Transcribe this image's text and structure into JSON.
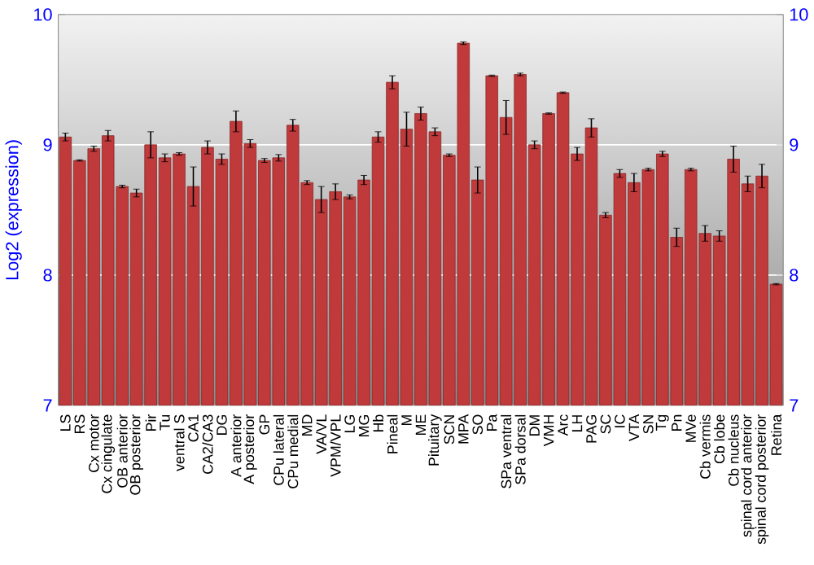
{
  "chart_data": {
    "type": "bar",
    "ylabel": "Log2 (expression)",
    "categories": [
      "LS",
      "RS",
      "Cx motor",
      "Cx cingulate",
      "OB anterior",
      "OB posterior",
      "Pir",
      "Tu",
      "ventral S",
      "CA1",
      "CA2/CA3",
      "DG",
      "A anterior",
      "A posterior",
      "GP",
      "CPu lateral",
      "CPu medial",
      "MD",
      "VA/VL",
      "VPM/VPL",
      "LG",
      "MG",
      "Hb",
      "Pineal",
      "M",
      "ME",
      "Pituitary",
      "SCN",
      "MPA",
      "SO",
      "Pa",
      "SPa ventral",
      "SPa dorsal",
      "DM",
      "VMH",
      "Arc",
      "LH",
      "PAG",
      "SC",
      "IC",
      "VTA",
      "SN",
      "Tg",
      "Pn",
      "MVe",
      "Cb vermis",
      "Cb lobe",
      "Cb nucleus",
      "spinal cord anterior",
      "spinal cord posterior",
      "Retina"
    ],
    "values": [
      9.06,
      8.88,
      8.97,
      9.07,
      8.68,
      8.63,
      9.0,
      8.9,
      8.93,
      8.68,
      8.98,
      8.89,
      9.18,
      9.01,
      8.88,
      8.9,
      9.15,
      8.71,
      8.58,
      8.64,
      8.6,
      8.73,
      9.06,
      9.48,
      9.12,
      9.24,
      9.1,
      8.92,
      9.78,
      8.73,
      9.53,
      9.21,
      9.54,
      9.0,
      9.24,
      9.4,
      8.93,
      9.13,
      8.46,
      8.78,
      8.71,
      8.81,
      8.93,
      8.29,
      8.81,
      8.32,
      8.3,
      8.89,
      8.7,
      8.76,
      7.93
    ],
    "errors": [
      0.03,
      0.005,
      0.02,
      0.04,
      0.01,
      0.03,
      0.1,
      0.03,
      0.01,
      0.15,
      0.05,
      0.04,
      0.08,
      0.03,
      0.015,
      0.025,
      0.045,
      0.015,
      0.1,
      0.06,
      0.015,
      0.035,
      0.04,
      0.05,
      0.13,
      0.05,
      0.03,
      0.01,
      0.01,
      0.1,
      0.005,
      0.13,
      0.01,
      0.03,
      0.005,
      0.005,
      0.05,
      0.07,
      0.02,
      0.03,
      0.07,
      0.01,
      0.02,
      0.07,
      0.01,
      0.06,
      0.04,
      0.1,
      0.06,
      0.09,
      0.005
    ],
    "color": "#c0393b",
    "ylim": [
      7,
      10
    ],
    "yticks": [
      7,
      8,
      9,
      10
    ],
    "y2lim": [
      7,
      10
    ],
    "y2ticks": [
      7,
      8,
      9,
      10
    ],
    "grid": "y"
  }
}
